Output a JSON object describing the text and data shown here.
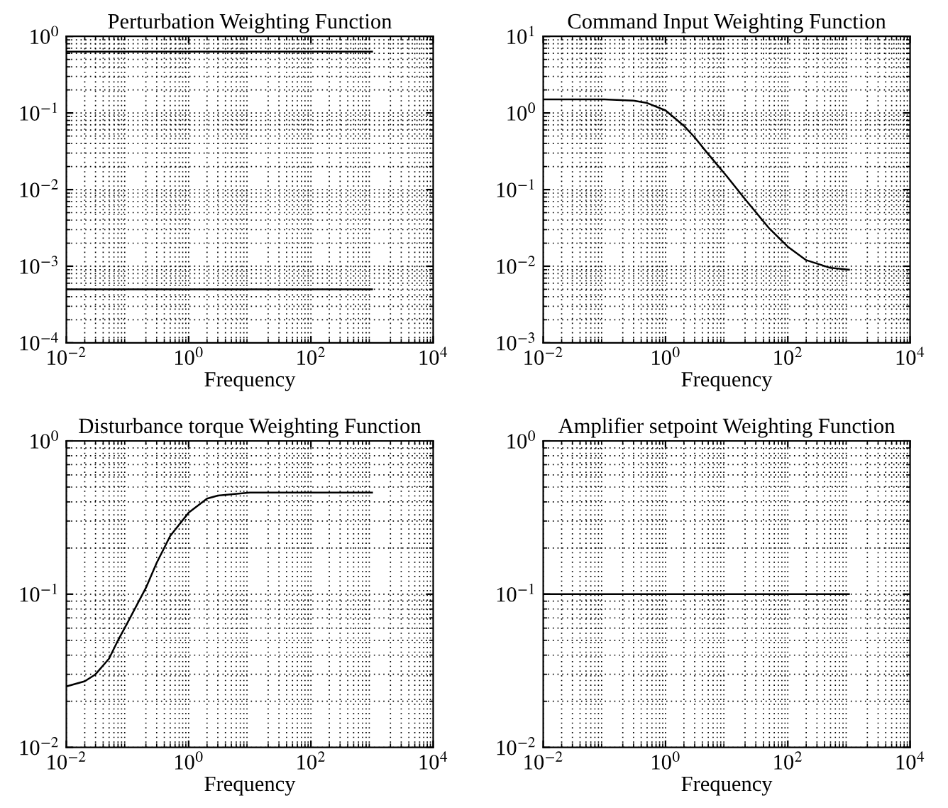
{
  "chart_data": [
    {
      "type": "line",
      "title": "Perturbation Weighting Function",
      "xlabel": "Frequency",
      "log": "xy",
      "grid": true,
      "marker": "none",
      "line_style": "solid",
      "xlim": [
        0.01,
        10000
      ],
      "ylim": [
        0.0001,
        1
      ],
      "xticks": [
        {
          "value": 0.01,
          "label": "10$^{−2}$"
        },
        {
          "value": 1,
          "label": "10$^{0}$"
        },
        {
          "value": 100,
          "label": "10$^{2}$"
        },
        {
          "value": 10000,
          "label": "10$^{4}$"
        }
      ],
      "yticks": [
        {
          "value": 0.0001,
          "label": "10$^{−4}$"
        },
        {
          "value": 0.001,
          "label": "10$^{−3}$"
        },
        {
          "value": 0.01,
          "label": "10$^{−2}$"
        },
        {
          "value": 0.1,
          "label": "10$^{−1}$"
        },
        {
          "value": 1,
          "label": "10$^{0}$"
        }
      ],
      "series": [
        {
          "color": "#000000",
          "x": [
            0.01,
            1000
          ],
          "values": [
            0.63,
            0.63
          ]
        },
        {
          "color": "#000000",
          "x": [
            0.01,
            1000
          ],
          "values": [
            0.0005,
            0.0005
          ]
        }
      ]
    },
    {
      "type": "line",
      "title": "Command Input Weighting Function",
      "xlabel": "Frequency",
      "log": "xy",
      "grid": true,
      "marker": "none",
      "line_style": "solid",
      "xlim": [
        0.01,
        10000
      ],
      "ylim": [
        0.001,
        10
      ],
      "xticks": [
        {
          "value": 0.01,
          "label": "10$^{−2}$"
        },
        {
          "value": 1,
          "label": "10$^{0}$"
        },
        {
          "value": 100,
          "label": "10$^{2}$"
        },
        {
          "value": 10000,
          "label": "10$^{4}$"
        }
      ],
      "yticks": [
        {
          "value": 0.001,
          "label": "10$^{−3}$"
        },
        {
          "value": 0.01,
          "label": "10$^{−2}$"
        },
        {
          "value": 0.1,
          "label": "10$^{−1}$"
        },
        {
          "value": 1,
          "label": "10$^{0}$"
        },
        {
          "value": 10,
          "label": "10$^{1}$"
        }
      ],
      "series": [
        {
          "color": "#000000",
          "x": [
            0.01,
            0.1,
            0.3,
            0.5,
            1,
            2,
            3,
            5,
            10,
            20,
            50,
            100,
            200,
            500,
            1000
          ],
          "values": [
            1.5,
            1.5,
            1.45,
            1.35,
            1.08,
            0.68,
            0.48,
            0.29,
            0.15,
            0.075,
            0.031,
            0.018,
            0.012,
            0.0095,
            0.009
          ]
        }
      ]
    },
    {
      "type": "line",
      "title": "Disturbance torque Weighting Function",
      "xlabel": "Frequency",
      "log": "xy",
      "grid": true,
      "marker": "none",
      "line_style": "solid",
      "xlim": [
        0.01,
        10000
      ],
      "ylim": [
        0.01,
        1
      ],
      "xticks": [
        {
          "value": 0.01,
          "label": "10$^{−2}$"
        },
        {
          "value": 1,
          "label": "10$^{0}$"
        },
        {
          "value": 100,
          "label": "10$^{2}$"
        },
        {
          "value": 10000,
          "label": "10$^{4}$"
        }
      ],
      "yticks": [
        {
          "value": 0.01,
          "label": "10$^{−2}$"
        },
        {
          "value": 0.1,
          "label": "10$^{−1}$"
        },
        {
          "value": 1,
          "label": "10$^{0}$"
        }
      ],
      "series": [
        {
          "color": "#000000",
          "x": [
            0.01,
            0.02,
            0.03,
            0.05,
            0.07,
            0.1,
            0.2,
            0.3,
            0.5,
            1,
            2,
            3,
            10,
            100,
            1000
          ],
          "values": [
            0.025,
            0.027,
            0.03,
            0.038,
            0.05,
            0.065,
            0.11,
            0.16,
            0.24,
            0.34,
            0.42,
            0.44,
            0.46,
            0.46,
            0.46
          ]
        }
      ]
    },
    {
      "type": "line",
      "title": "Amplifier setpoint Weighting Function",
      "xlabel": "Frequency",
      "log": "xy",
      "grid": true,
      "marker": "none",
      "line_style": "solid",
      "xlim": [
        0.01,
        10000
      ],
      "ylim": [
        0.01,
        1
      ],
      "xticks": [
        {
          "value": 0.01,
          "label": "10$^{−2}$"
        },
        {
          "value": 1,
          "label": "10$^{0}$"
        },
        {
          "value": 100,
          "label": "10$^{2}$"
        },
        {
          "value": 10000,
          "label": "10$^{4}$"
        }
      ],
      "yticks": [
        {
          "value": 0.01,
          "label": "10$^{−2}$"
        },
        {
          "value": 0.1,
          "label": "10$^{−1}$"
        },
        {
          "value": 1,
          "label": "10$^{0}$"
        }
      ],
      "series": [
        {
          "color": "#000000",
          "x": [
            0.01,
            1000
          ],
          "values": [
            0.1,
            0.1
          ]
        }
      ]
    }
  ]
}
